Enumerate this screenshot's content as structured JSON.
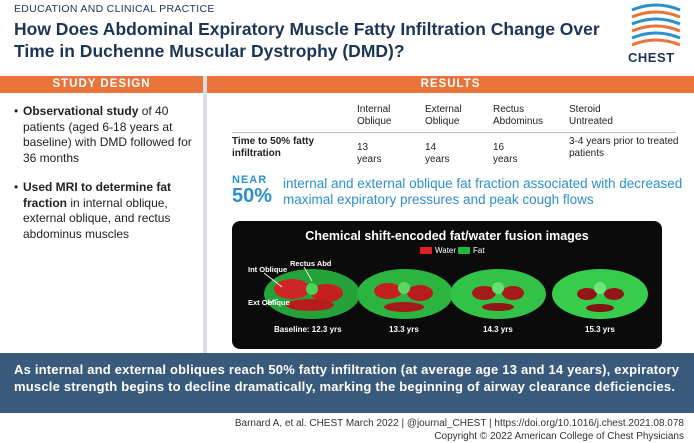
{
  "header": {
    "category": "EDUCATION AND CLINICAL PRACTICE",
    "title": "How Does Abdominal Expiratory Muscle Fatty Infiltration Change Over Time in Duchenne Muscular Dystrophy (DMD)?",
    "logo_text": "CHEST"
  },
  "study_design": {
    "heading": "STUDY DESIGN",
    "item1_bold": "Observational study",
    "item1_text": " of 40 patients (aged 6-18 years at baseline) with DMD followed for 36 months",
    "item2_bold": "Used MRI to determine fat fraction",
    "item2_text": " in internal oblique, external oblique, and rectus abdominus muscles"
  },
  "results": {
    "heading": "RESULTS",
    "columns": [
      "Internal Oblique",
      "External Oblique",
      "Rectus Abdominus",
      "Steroid Untreated"
    ],
    "row_label": "Time to 50% fatty infiltration",
    "values": [
      "13 years",
      "14 years",
      "16 years",
      "3-4 years prior to treated patients"
    ],
    "near_small": "NEAR",
    "near_big": "50%",
    "near_text": "internal and external oblique fat fraction associated with decreased maximal expiratory pressures and peak cough flows"
  },
  "mri": {
    "title": "Chemical shift-encoded fat/water fusion images",
    "legend_water": "Water",
    "legend_fat": "Fat",
    "label_int": "Int Oblique",
    "label_rectus": "Rectus Abd",
    "label_ext": "Ext Oblique",
    "captions": [
      "Baseline: 12.3 yrs",
      "13.3 yrs",
      "14.3 yrs",
      "15.3 yrs"
    ],
    "water_color": "#e02020",
    "fat_color": "#22b83a"
  },
  "conclusion": "As internal and external obliques reach 50% fatty infiltration (at average age 13 and 14 years), expiratory muscle strength begins to decline dramatically, marking the beginning of airway clearance deficiencies.",
  "footer": {
    "citation": "Barnard A, et al. CHEST March 2022  |  @journal_CHEST  |  https://doi.org/10.1016/j.chest.2021.08.078",
    "copyright": "Copyright © 2022 American College of Chest Physicians"
  }
}
